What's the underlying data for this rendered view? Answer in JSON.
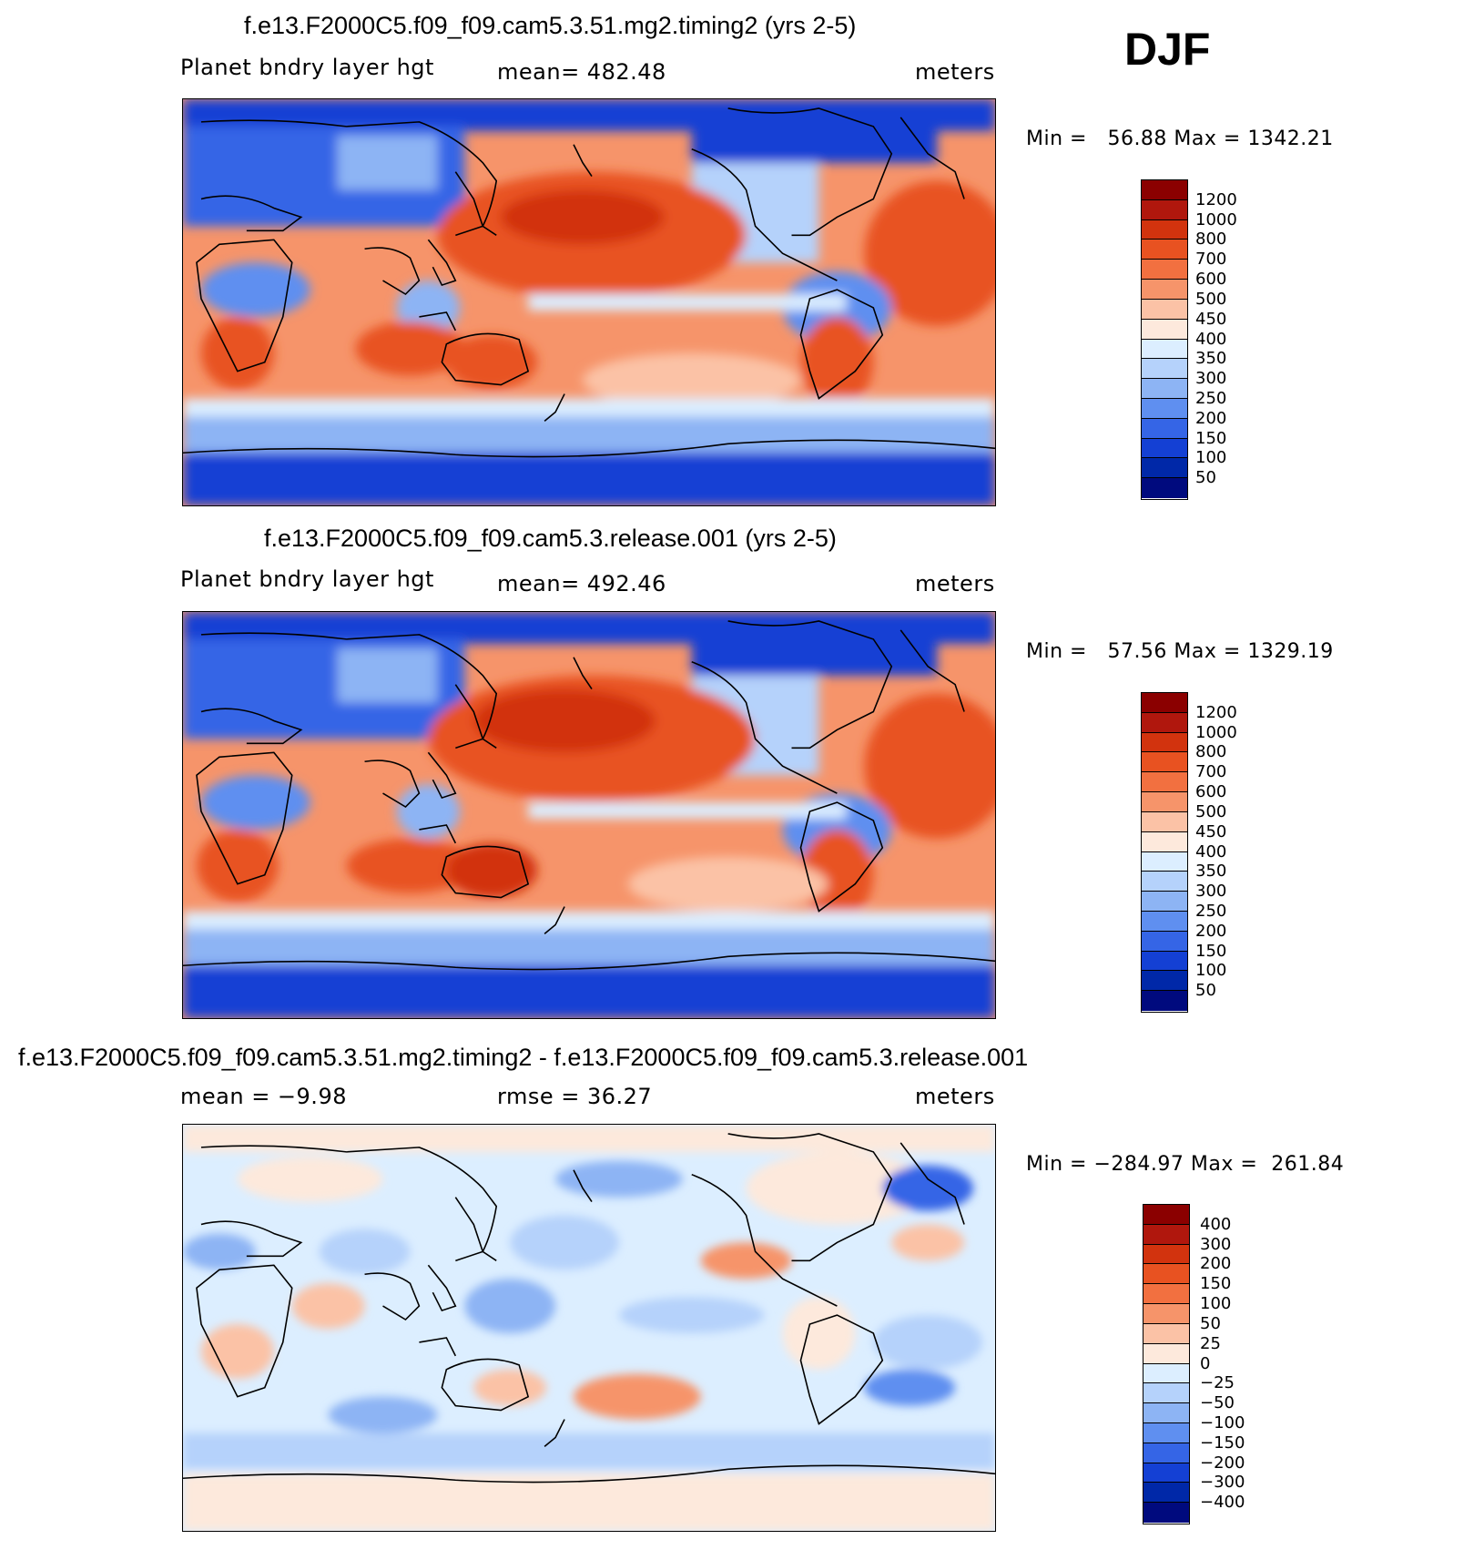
{
  "season": "DJF",
  "units_label": "meters",
  "panels": [
    {
      "title": "f.e13.F2000C5.f09_f09.cam5.3.51.mg2.timing2 (yrs 2-5)",
      "left_label": "Planet bndry layer hgt",
      "center_label": "mean=  482.48",
      "right_label": "meters",
      "minmax": "Min =   56.88 Max = 1342.21",
      "colorbar": {
        "labels": [
          "1200",
          "1000",
          "800",
          "700",
          "600",
          "500",
          "450",
          "400",
          "350",
          "300",
          "250",
          "200",
          "150",
          "100",
          "50"
        ],
        "colors": [
          "#8b0000",
          "#b0170d",
          "#d2330e",
          "#e85221",
          "#f27040",
          "#f6946a",
          "#fbc2a6",
          "#fde9dc",
          "#dceeff",
          "#b5d2fb",
          "#8db4f4",
          "#5f8ff0",
          "#3565e6",
          "#1440d4",
          "#0028a8",
          "#000a7e"
        ]
      }
    },
    {
      "title": "f.e13.F2000C5.f09_f09.cam5.3.release.001 (yrs 2-5)",
      "left_label": "Planet bndry layer hgt",
      "center_label": "mean=  492.46",
      "right_label": "meters",
      "minmax": "Min =   57.56 Max = 1329.19",
      "colorbar": {
        "labels": [
          "1200",
          "1000",
          "800",
          "700",
          "600",
          "500",
          "450",
          "400",
          "350",
          "300",
          "250",
          "200",
          "150",
          "100",
          "50"
        ],
        "colors": [
          "#8b0000",
          "#b0170d",
          "#d2330e",
          "#e85221",
          "#f27040",
          "#f6946a",
          "#fbc2a6",
          "#fde9dc",
          "#dceeff",
          "#b5d2fb",
          "#8db4f4",
          "#5f8ff0",
          "#3565e6",
          "#1440d4",
          "#0028a8",
          "#000a7e"
        ]
      }
    },
    {
      "title": "f.e13.F2000C5.f09_f09.cam5.3.51.mg2.timing2 - f.e13.F2000C5.f09_f09.cam5.3.release.001",
      "left_label": "mean =   −9.98",
      "center_label": "rmse =   36.27",
      "right_label": "meters",
      "minmax": "Min = −284.97 Max =  261.84",
      "colorbar": {
        "labels": [
          "400",
          "300",
          "200",
          "150",
          "100",
          "50",
          "25",
          "0",
          "−25",
          "−50",
          "−100",
          "−150",
          "−200",
          "−300",
          "−400"
        ],
        "colors": [
          "#8b0000",
          "#b0170d",
          "#d2330e",
          "#e85221",
          "#f27040",
          "#f6946a",
          "#fbc2a6",
          "#fde9dc",
          "#dceeff",
          "#b5d2fb",
          "#8db4f4",
          "#5f8ff0",
          "#3565e6",
          "#1440d4",
          "#0028a8",
          "#000a7e"
        ]
      }
    }
  ]
}
